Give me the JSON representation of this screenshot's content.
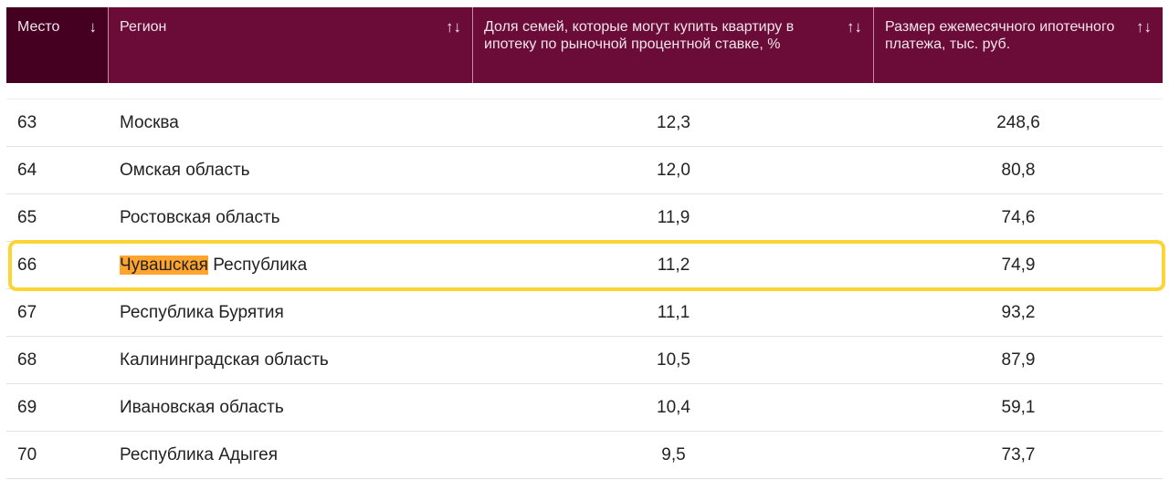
{
  "header": [
    {
      "label": "Место",
      "sort_icon": "↓"
    },
    {
      "label": "Регион",
      "sort_icon": "↑↓"
    },
    {
      "label": "Доля семей, которые могут купить квартиру в ипотеку по рыночной процентной ставке, %",
      "sort_icon": "↑↓"
    },
    {
      "label": "Размер ежемесячного ипотечного платежа, тыс. руб.",
      "sort_icon": "↑↓"
    }
  ],
  "rows": [
    {
      "place": "63",
      "region": "Москва",
      "share": "12,3",
      "payment": "248,6"
    },
    {
      "place": "64",
      "region": "Омская область",
      "share": "12,0",
      "payment": "80,8"
    },
    {
      "place": "65",
      "region": "Ростовская область",
      "share": "11,9",
      "payment": "74,6"
    },
    {
      "place": "66",
      "region_highlight": "Чувашская",
      "region_rest": " Республика",
      "share": "11,2",
      "payment": "74,9"
    },
    {
      "place": "67",
      "region": "Республика Бурятия",
      "share": "11,1",
      "payment": "93,2"
    },
    {
      "place": "68",
      "region": "Калининградская область",
      "share": "10,5",
      "payment": "87,9"
    },
    {
      "place": "69",
      "region": "Ивановская область",
      "share": "10,4",
      "payment": "59,1"
    },
    {
      "place": "70",
      "region": "Республика Адыгея",
      "share": "9,5",
      "payment": "73,7"
    }
  ],
  "colors": {
    "header": "#6a0c37",
    "active_header": "#450021",
    "highlight_border": "#fcd535",
    "text_highlight": "#ffa52f"
  }
}
